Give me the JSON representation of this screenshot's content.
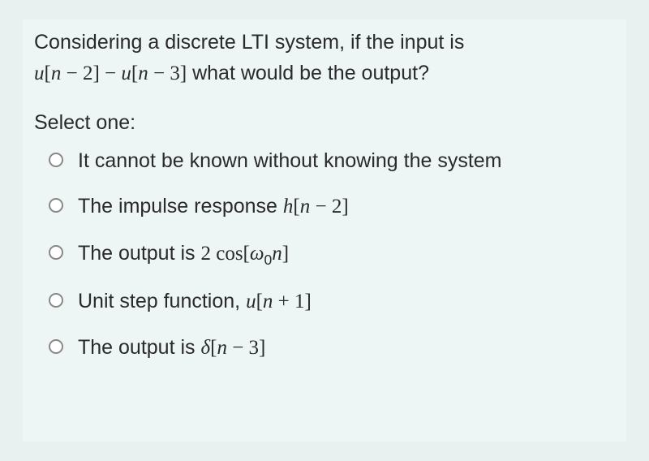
{
  "question": {
    "line1_prefix": "Considering a discrete LTI system, if the input is",
    "line2_expr_part1": "u",
    "line2_bracket1_open": "[",
    "line2_n1": "n",
    "line2_minus1": " − ",
    "line2_num1": "2",
    "line2_bracket1_close": "]",
    "line2_minus2": " − ",
    "line2_expr_part2": "u",
    "line2_bracket2_open": "[",
    "line2_n2": "n",
    "line2_minus3": " − ",
    "line2_num2": "3",
    "line2_bracket2_close": "]",
    "line2_suffix": " what would be the output?"
  },
  "select_prompt": "Select one:",
  "options": [
    {
      "plain_before": "It cannot be known without knowing the system",
      "math_parts": []
    },
    {
      "plain_before": "The impulse response ",
      "math_parts": [
        {
          "type": "var",
          "text": "h"
        },
        {
          "type": "num",
          "text": "["
        },
        {
          "type": "var",
          "text": "n"
        },
        {
          "type": "num",
          "text": " − 2]"
        }
      ]
    },
    {
      "plain_before": "The output is ",
      "math_parts": [
        {
          "type": "num",
          "text": "2 cos["
        },
        {
          "type": "var",
          "text": "ω"
        },
        {
          "type": "sub",
          "text": "0"
        },
        {
          "type": "var",
          "text": "n"
        },
        {
          "type": "num",
          "text": "]"
        }
      ]
    },
    {
      "plain_before": "Unit step function, ",
      "math_parts": [
        {
          "type": "var",
          "text": "u"
        },
        {
          "type": "num",
          "text": "["
        },
        {
          "type": "var",
          "text": "n"
        },
        {
          "type": "num",
          "text": " + 1]"
        }
      ]
    },
    {
      "plain_before": "The output is ",
      "math_parts": [
        {
          "type": "var",
          "text": "δ"
        },
        {
          "type": "num",
          "text": "["
        },
        {
          "type": "var",
          "text": "n"
        },
        {
          "type": "num",
          "text": " − 3]"
        }
      ]
    }
  ],
  "colors": {
    "background": "#eef5f5",
    "outer_background": "#e8f0f0",
    "text": "#2a2a2a",
    "radio_border": "#888888",
    "radio_fill": "#ffffff"
  },
  "typography": {
    "question_fontsize": 25,
    "option_fontsize": 25
  }
}
